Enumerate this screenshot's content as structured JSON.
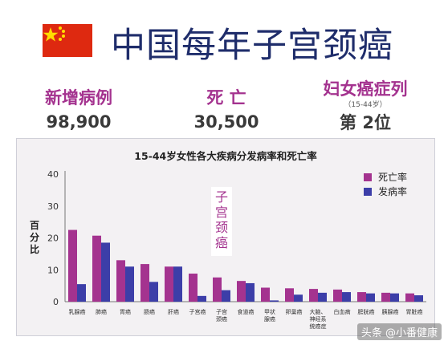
{
  "header": {
    "title": "中国每年子宫颈癌",
    "flag_icon": "china-flag-icon"
  },
  "stats": {
    "new_cases": {
      "label": "新增病例",
      "value": "98,900"
    },
    "deaths": {
      "label": "死 亡",
      "value": "30,500"
    },
    "rank": {
      "label": "妇女癌症列",
      "sub": "（15-44岁）",
      "value": "第 2位"
    }
  },
  "colors": {
    "death": "#a4338f",
    "incidence": "#3c3ea8",
    "title": "#1f2d6b"
  },
  "watermark": "头条 @小番健康",
  "chart_data": {
    "type": "bar",
    "title": "15-44岁女性各大疾病分发病率和死亡率",
    "ylabel": "百分比",
    "xlabel": "",
    "ylim": [
      0,
      40
    ],
    "yticks": [
      0,
      10,
      20,
      30,
      40
    ],
    "grid": false,
    "legend": "top-right",
    "categories": [
      "乳腺癌",
      "肺癌",
      "胃癌",
      "肠癌",
      "肝癌",
      "子宫癌",
      "子宫颈癌",
      "食道癌",
      "甲状腺癌",
      "卵巢癌",
      "大脑、神经系统癌症",
      "白血病",
      "膀胱癌",
      "胰腺癌",
      "胃脏癌"
    ],
    "series": [
      {
        "name": "死亡率",
        "values": [
          22.5,
          20.7,
          13.0,
          11.8,
          11.0,
          8.8,
          7.6,
          6.5,
          4.4,
          4.2,
          4.0,
          3.8,
          3.0,
          2.8,
          2.6
        ]
      },
      {
        "name": "发病率",
        "values": [
          5.5,
          18.5,
          11.0,
          6.2,
          11.0,
          1.8,
          3.6,
          5.8,
          0.4,
          2.2,
          2.8,
          3.0,
          2.6,
          2.6,
          2.0
        ]
      }
    ],
    "annotation": "子宫颈癌"
  }
}
